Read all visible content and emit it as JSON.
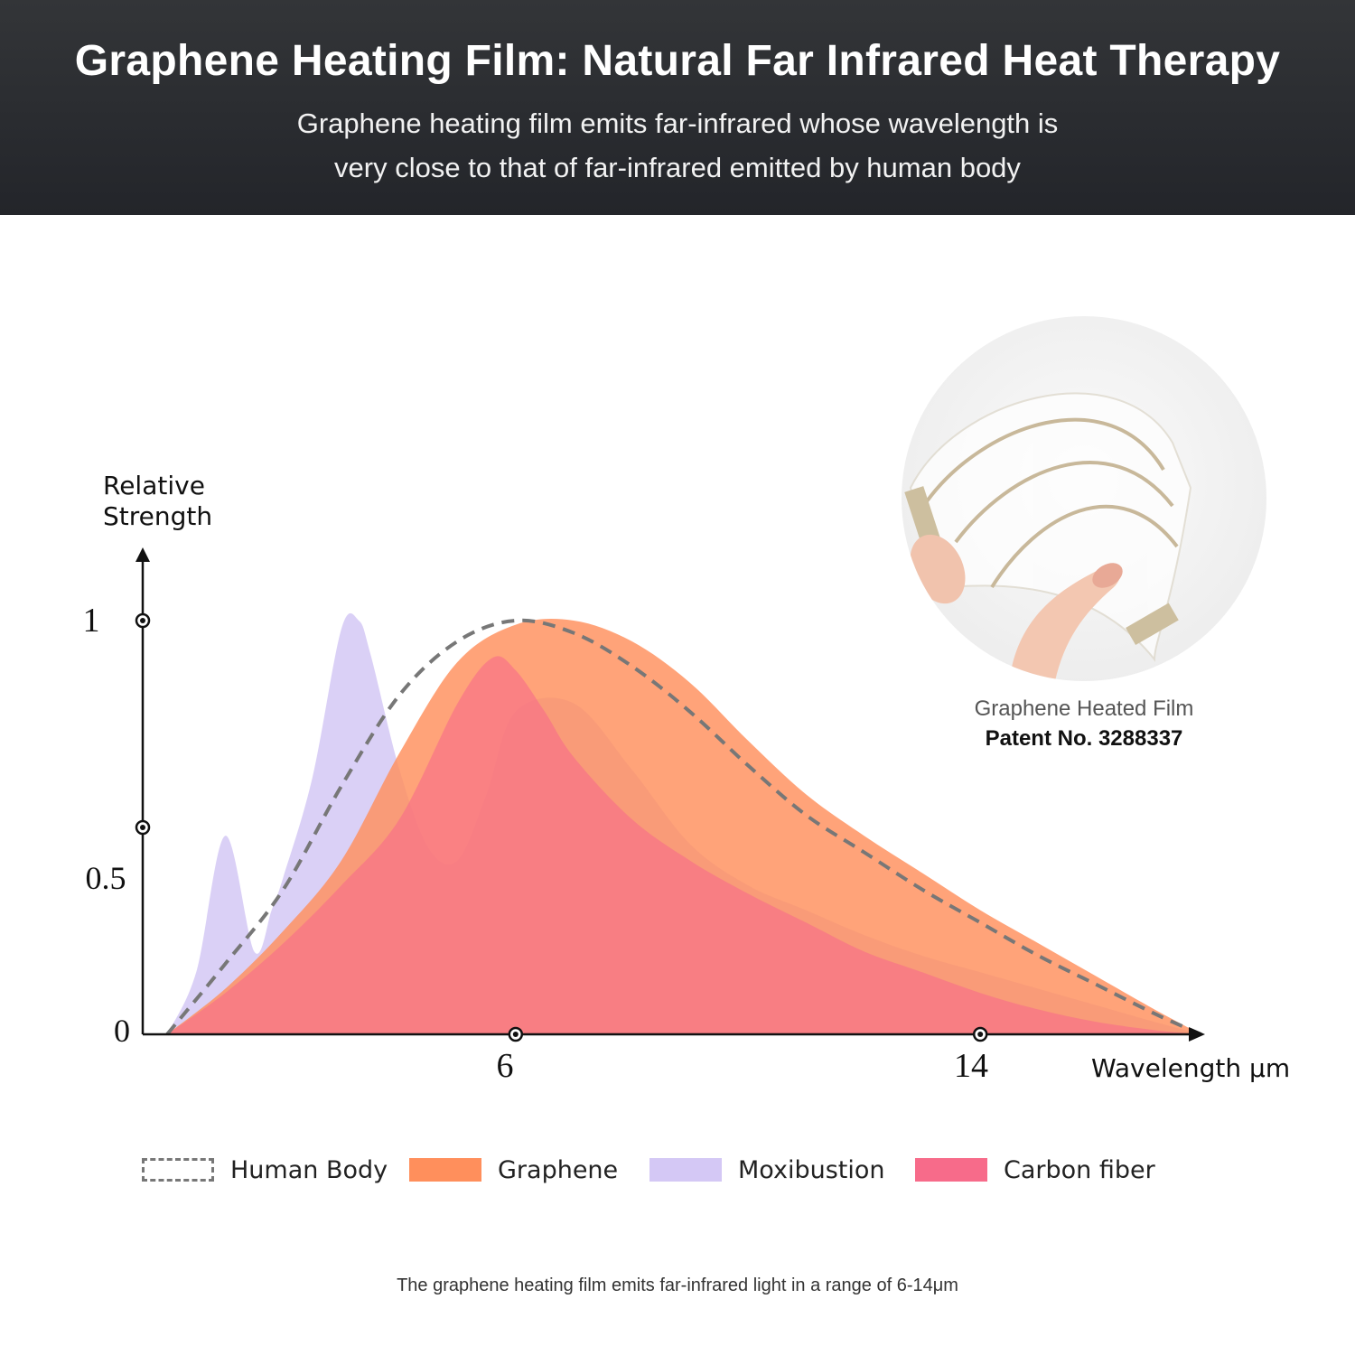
{
  "header": {
    "title": "Graphene Heating Film: Natural Far Infrared Heat Therapy",
    "subtitle_line1": "Graphene heating film emits far-infrared whose wavelength is",
    "subtitle_line2": "very close to that of far-infrared emitted by human body"
  },
  "product": {
    "name": "Graphene Heated Film",
    "patent": "Patent No. 3288337"
  },
  "footnote": "The graphene heating film emits far-infrared light in a range of 6-14μm",
  "colors": {
    "human_body": "#777777",
    "graphene": "#ff8f5c",
    "moxibustion": "#d4c8f5",
    "carbon_fiber": "#f76b8a",
    "header_bg": "#2b2d31"
  },
  "chart_data": {
    "type": "area",
    "ylabel_line1": "Relative",
    "ylabel_line2": "Strength",
    "xlabel": "Wavelength μm",
    "ylim": [
      0,
      1
    ],
    "x_ticks": [
      "6",
      "14"
    ],
    "y_ticks": [
      "0",
      "0.5",
      "1"
    ],
    "legend": [
      "Human Body",
      "Graphene",
      "Moxibustion",
      "Carbon fiber"
    ],
    "legend_position": "bottom",
    "grid": false,
    "series": [
      {
        "name": "Human Body",
        "style": "dashed-line",
        "x": [
          0,
          1,
          2,
          3,
          4,
          5,
          6,
          7,
          8,
          9,
          10,
          11,
          12,
          13,
          14,
          15,
          16,
          17,
          17.8
        ],
        "y": [
          0,
          0.17,
          0.35,
          0.6,
          0.82,
          0.95,
          1.0,
          0.97,
          0.89,
          0.78,
          0.65,
          0.53,
          0.44,
          0.35,
          0.27,
          0.19,
          0.12,
          0.05,
          0.0
        ]
      },
      {
        "name": "Graphene",
        "x": [
          0,
          1,
          2,
          3,
          4,
          5,
          6,
          7,
          8,
          9,
          10,
          11,
          12,
          13,
          14,
          15,
          16,
          17,
          17.8
        ],
        "y": [
          0,
          0.11,
          0.25,
          0.42,
          0.68,
          0.9,
          0.99,
          1.0,
          0.95,
          0.85,
          0.71,
          0.58,
          0.48,
          0.39,
          0.3,
          0.22,
          0.14,
          0.06,
          0.0
        ]
      },
      {
        "name": "Moxibustion",
        "x": [
          0,
          0.5,
          1,
          1.5,
          1.8,
          2,
          2.5,
          3,
          3.3,
          3.5,
          4,
          4.5,
          5,
          5.5,
          6,
          7,
          8,
          9,
          10,
          11,
          12,
          13,
          14,
          15,
          16,
          17,
          17.8
        ],
        "y": [
          0,
          0.15,
          0.48,
          0.2,
          0.3,
          0.38,
          0.62,
          0.98,
          1.0,
          0.92,
          0.64,
          0.45,
          0.42,
          0.58,
          0.78,
          0.8,
          0.64,
          0.46,
          0.36,
          0.3,
          0.24,
          0.19,
          0.15,
          0.11,
          0.07,
          0.03,
          0.0
        ]
      },
      {
        "name": "Carbon fiber",
        "x": [
          0,
          1,
          2,
          3,
          4,
          5,
          5.6,
          6,
          6.5,
          7,
          8,
          9,
          10,
          11,
          12,
          13,
          14,
          15,
          16,
          17,
          17.8
        ],
        "y": [
          0,
          0.1,
          0.22,
          0.36,
          0.52,
          0.8,
          0.91,
          0.88,
          0.78,
          0.67,
          0.52,
          0.42,
          0.34,
          0.27,
          0.2,
          0.15,
          0.1,
          0.06,
          0.03,
          0.01,
          0.0
        ]
      }
    ]
  }
}
